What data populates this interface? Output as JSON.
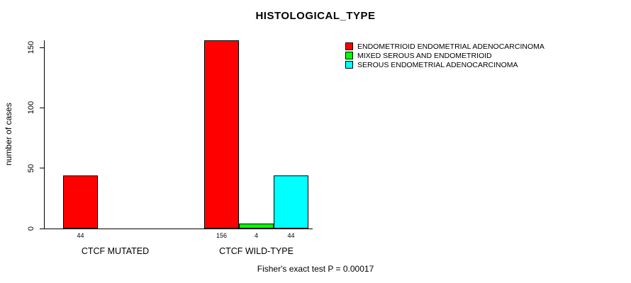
{
  "chart_data": {
    "type": "bar",
    "title": "HISTOLOGICAL_TYPE",
    "xlabel": "",
    "ylabel": "number of cases",
    "ylim": [
      0,
      156
    ],
    "yticks": [
      0,
      50,
      100,
      150
    ],
    "grid": false,
    "legend_position": "top-right",
    "categories": [
      "CTCF MUTATED",
      "CTCF WILD-TYPE"
    ],
    "series": [
      {
        "name": "ENDOMETRIOID ENDOMETRIAL ADENOCARCINOMA",
        "color": "#ff0000",
        "values": [
          44,
          156
        ]
      },
      {
        "name": "MIXED SEROUS AND ENDOMETRIOID",
        "color": "#00ff00",
        "values": [
          0,
          4
        ]
      },
      {
        "name": "SEROUS ENDOMETRIAL ADENOCARCINOMA",
        "color": "#00ffff",
        "values": [
          0,
          44
        ]
      }
    ],
    "bar_labels": [
      [
        "44"
      ],
      [
        "156",
        "4",
        "44"
      ]
    ],
    "annotation": "Fisher's exact test P = 0.00017"
  }
}
